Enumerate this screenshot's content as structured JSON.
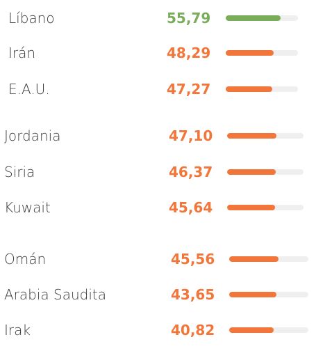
{
  "colors": {
    "highlight": "#7aad5a",
    "default": "#f2763a",
    "track": "#efefef",
    "label": "#3a3a3a"
  },
  "chart_data": {
    "type": "bar",
    "orientation": "horizontal",
    "categories": [
      "Líbano",
      "Irán",
      "E.A.U.",
      "Jordania",
      "Siria",
      "Kuwait",
      "Omán",
      "Arabia Saudita",
      "Irak"
    ],
    "values": [
      55.79,
      48.29,
      47.27,
      47.1,
      46.37,
      45.64,
      45.56,
      43.65,
      40.82
    ],
    "value_labels": [
      "55,79",
      "48,29",
      "47,27",
      "47,10",
      "46,37",
      "45,64",
      "45,56",
      "43,65",
      "40,82"
    ],
    "highlighted_category": "Líbano",
    "xlim": [
      0,
      73
    ],
    "grid": false,
    "legend": "none"
  }
}
